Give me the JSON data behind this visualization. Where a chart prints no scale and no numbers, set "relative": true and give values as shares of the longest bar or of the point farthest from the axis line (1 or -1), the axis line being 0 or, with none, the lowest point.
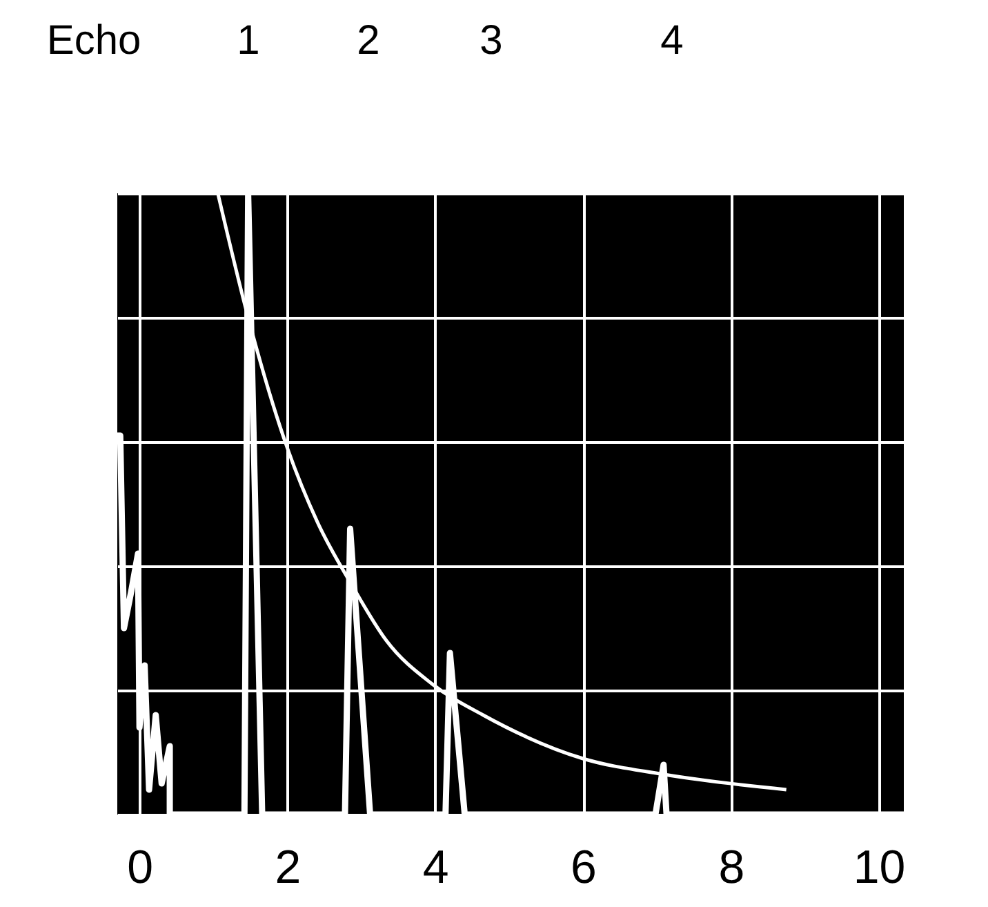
{
  "chart_data": {
    "type": "line",
    "relative": true,
    "xlim": [
      -0.3,
      10.34
    ],
    "xticks": [
      0,
      2,
      4,
      6,
      8,
      10
    ],
    "grid": true,
    "marker": "none",
    "annotations": [
      "Echo",
      "1",
      "2",
      "3",
      "4"
    ],
    "series": [
      {
        "color": "#ffffff",
        "x": [
          -0.3,
          -0.26,
          -0.21,
          -0.11,
          -0.02,
          0,
          0.07,
          0.13,
          0.22,
          0.3,
          0.41,
          0.41,
          1.42,
          1.47,
          1.66,
          2.78,
          2.85,
          3.12,
          4.14,
          4.2,
          4.4,
          6.98,
          7.09,
          7.13,
          10.34
        ],
        "values": [
          0.61,
          0.61,
          0.3,
          0.36,
          0.42,
          0.14,
          0.24,
          0.04,
          0.16,
          0.05,
          0.11,
          0,
          0,
          1,
          0,
          0,
          0.46,
          0,
          0,
          0.26,
          0,
          0,
          0.08,
          0,
          0
        ]
      },
      {
        "color": "#ffffff",
        "x": [
          1.06,
          1.47,
          2.0,
          2.41,
          2.87,
          3.34,
          3.96,
          4.65,
          6.0,
          7.07,
          8.75
        ],
        "values": [
          1.0,
          0.8,
          0.59,
          0.47,
          0.37,
          0.28,
          0.21,
          0.16,
          0.09,
          0.065,
          0.04
        ]
      }
    ]
  }
}
